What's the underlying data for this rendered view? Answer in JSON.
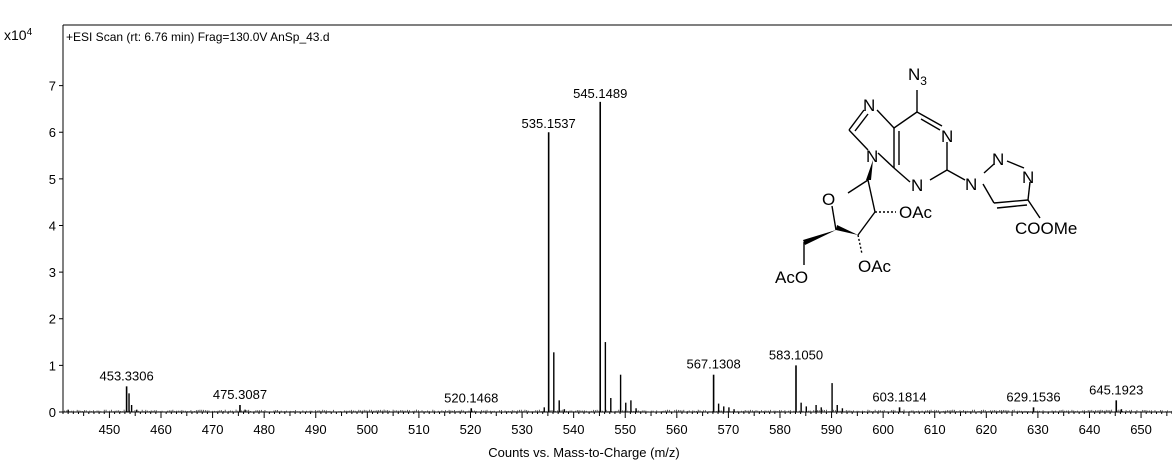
{
  "chart_data": {
    "type": "bar",
    "title": "+ESI Scan (rt: 6.76 min) Frag=130.0V AnSp_43.d",
    "xlabel": "Counts vs. Mass-to-Charge (m/z)",
    "y_multiplier": "x10",
    "y_multiplier_exp": "4",
    "xlim": [
      441,
      656
    ],
    "ylim": [
      0,
      8.3
    ],
    "x_ticks": [
      450,
      460,
      470,
      480,
      490,
      500,
      510,
      520,
      530,
      540,
      550,
      560,
      570,
      580,
      590,
      600,
      610,
      620,
      630,
      640,
      650
    ],
    "y_ticks": [
      0,
      1,
      2,
      3,
      4,
      5,
      6,
      7
    ],
    "grid": false,
    "series": [
      {
        "labeled_peaks": [
          {
            "x": 453.3306,
            "y": 0.55,
            "label": "453.3306"
          },
          {
            "x": 475.3087,
            "y": 0.15,
            "label": "475.3087"
          },
          {
            "x": 520.1468,
            "y": 0.08,
            "label": "520.1468"
          },
          {
            "x": 535.1537,
            "y": 6.0,
            "label": "535.1537"
          },
          {
            "x": 545.1489,
            "y": 6.65,
            "label": "545.1489"
          },
          {
            "x": 567.1308,
            "y": 0.8,
            "label": "567.1308"
          },
          {
            "x": 583.105,
            "y": 1.0,
            "label": "583.1050"
          },
          {
            "x": 603.1814,
            "y": 0.1,
            "label": "603.1814"
          },
          {
            "x": 629.1536,
            "y": 0.1,
            "label": "629.1536"
          },
          {
            "x": 645.1923,
            "y": 0.25,
            "label": "645.1923"
          }
        ],
        "minor_peaks": [
          {
            "x": 442.0,
            "y": 0.05
          },
          {
            "x": 453.8,
            "y": 0.4
          },
          {
            "x": 454.3,
            "y": 0.15
          },
          {
            "x": 455.3,
            "y": 0.05
          },
          {
            "x": 476.3,
            "y": 0.05
          },
          {
            "x": 536.15,
            "y": 1.28
          },
          {
            "x": 537.2,
            "y": 0.25
          },
          {
            "x": 538.2,
            "y": 0.06
          },
          {
            "x": 534.3,
            "y": 0.1
          },
          {
            "x": 546.15,
            "y": 1.5
          },
          {
            "x": 547.2,
            "y": 0.3
          },
          {
            "x": 549.1,
            "y": 0.8
          },
          {
            "x": 550.1,
            "y": 0.2
          },
          {
            "x": 551.1,
            "y": 0.25
          },
          {
            "x": 552.1,
            "y": 0.08
          },
          {
            "x": 568.1,
            "y": 0.18
          },
          {
            "x": 569.1,
            "y": 0.12
          },
          {
            "x": 570.1,
            "y": 0.1
          },
          {
            "x": 571.1,
            "y": 0.06
          },
          {
            "x": 584.1,
            "y": 0.2
          },
          {
            "x": 585.1,
            "y": 0.12
          },
          {
            "x": 587.0,
            "y": 0.15
          },
          {
            "x": 588.0,
            "y": 0.1
          },
          {
            "x": 590.1,
            "y": 0.62
          },
          {
            "x": 591.1,
            "y": 0.15
          },
          {
            "x": 592.1,
            "y": 0.08
          },
          {
            "x": 646.2,
            "y": 0.06
          }
        ]
      }
    ],
    "annotations": {
      "substituent_top": "N",
      "substituent_top_sub": "3",
      "ring_atoms": [
        "N",
        "N",
        "N",
        "N",
        "N",
        "N",
        "N",
        "N",
        "O"
      ],
      "oac_2": "OAc",
      "oac_3": "OAc",
      "oac_5": "AcO",
      "ester": "COOMe"
    }
  }
}
